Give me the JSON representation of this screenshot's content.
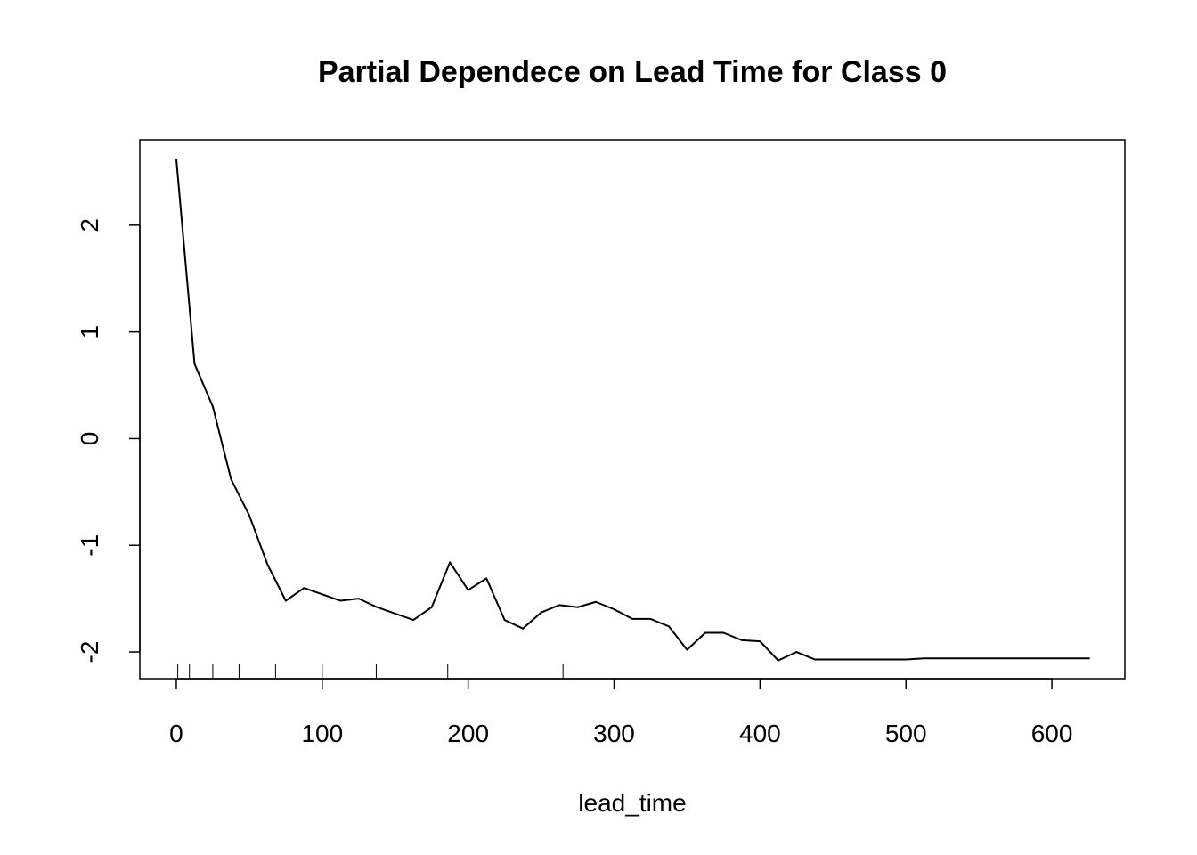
{
  "chart_data": {
    "type": "line",
    "title": "Partial Dependece on Lead Time for Class 0",
    "xlabel": "lead_time",
    "ylabel": "",
    "xlim": [
      -25,
      650
    ],
    "ylim": [
      -2.25,
      2.8
    ],
    "x_ticks": [
      0,
      100,
      200,
      300,
      400,
      500,
      600
    ],
    "y_ticks": [
      -2,
      -1,
      0,
      1,
      2
    ],
    "grid": false,
    "series": [
      {
        "x": [
          0,
          12.5,
          25,
          37.5,
          50,
          62.5,
          75,
          87.5,
          100,
          112.5,
          125,
          137.5,
          150,
          162.5,
          175,
          187.5,
          200,
          212.5,
          225,
          237.5,
          250,
          262.5,
          275,
          287.5,
          300,
          312.5,
          325,
          337.5,
          350,
          362.5,
          375,
          387.5,
          400,
          412.5,
          425,
          437.5,
          450,
          462.5,
          475,
          487.5,
          500,
          512.5,
          525,
          537.5,
          550,
          562.5,
          575,
          587.5,
          600,
          612.5,
          626
        ],
        "y": [
          2.62,
          0.7,
          0.3,
          -0.38,
          -0.72,
          -1.18,
          -1.52,
          -1.4,
          -1.46,
          -1.52,
          -1.5,
          -1.58,
          -1.64,
          -1.7,
          -1.58,
          -1.16,
          -1.42,
          -1.31,
          -1.7,
          -1.78,
          -1.63,
          -1.56,
          -1.58,
          -1.53,
          -1.6,
          -1.69,
          -1.69,
          -1.76,
          -1.98,
          -1.82,
          -1.82,
          -1.89,
          -1.9,
          -2.08,
          -2.0,
          -2.07,
          -2.07,
          -2.07,
          -2.07,
          -2.07,
          -2.07,
          -2.06,
          -2.06,
          -2.06,
          -2.06,
          -2.06,
          -2.06,
          -2.06,
          -2.06,
          -2.06,
          -2.06
        ]
      }
    ],
    "rug": [
      1,
      9,
      25,
      43,
      68,
      100,
      137,
      186,
      265
    ]
  }
}
